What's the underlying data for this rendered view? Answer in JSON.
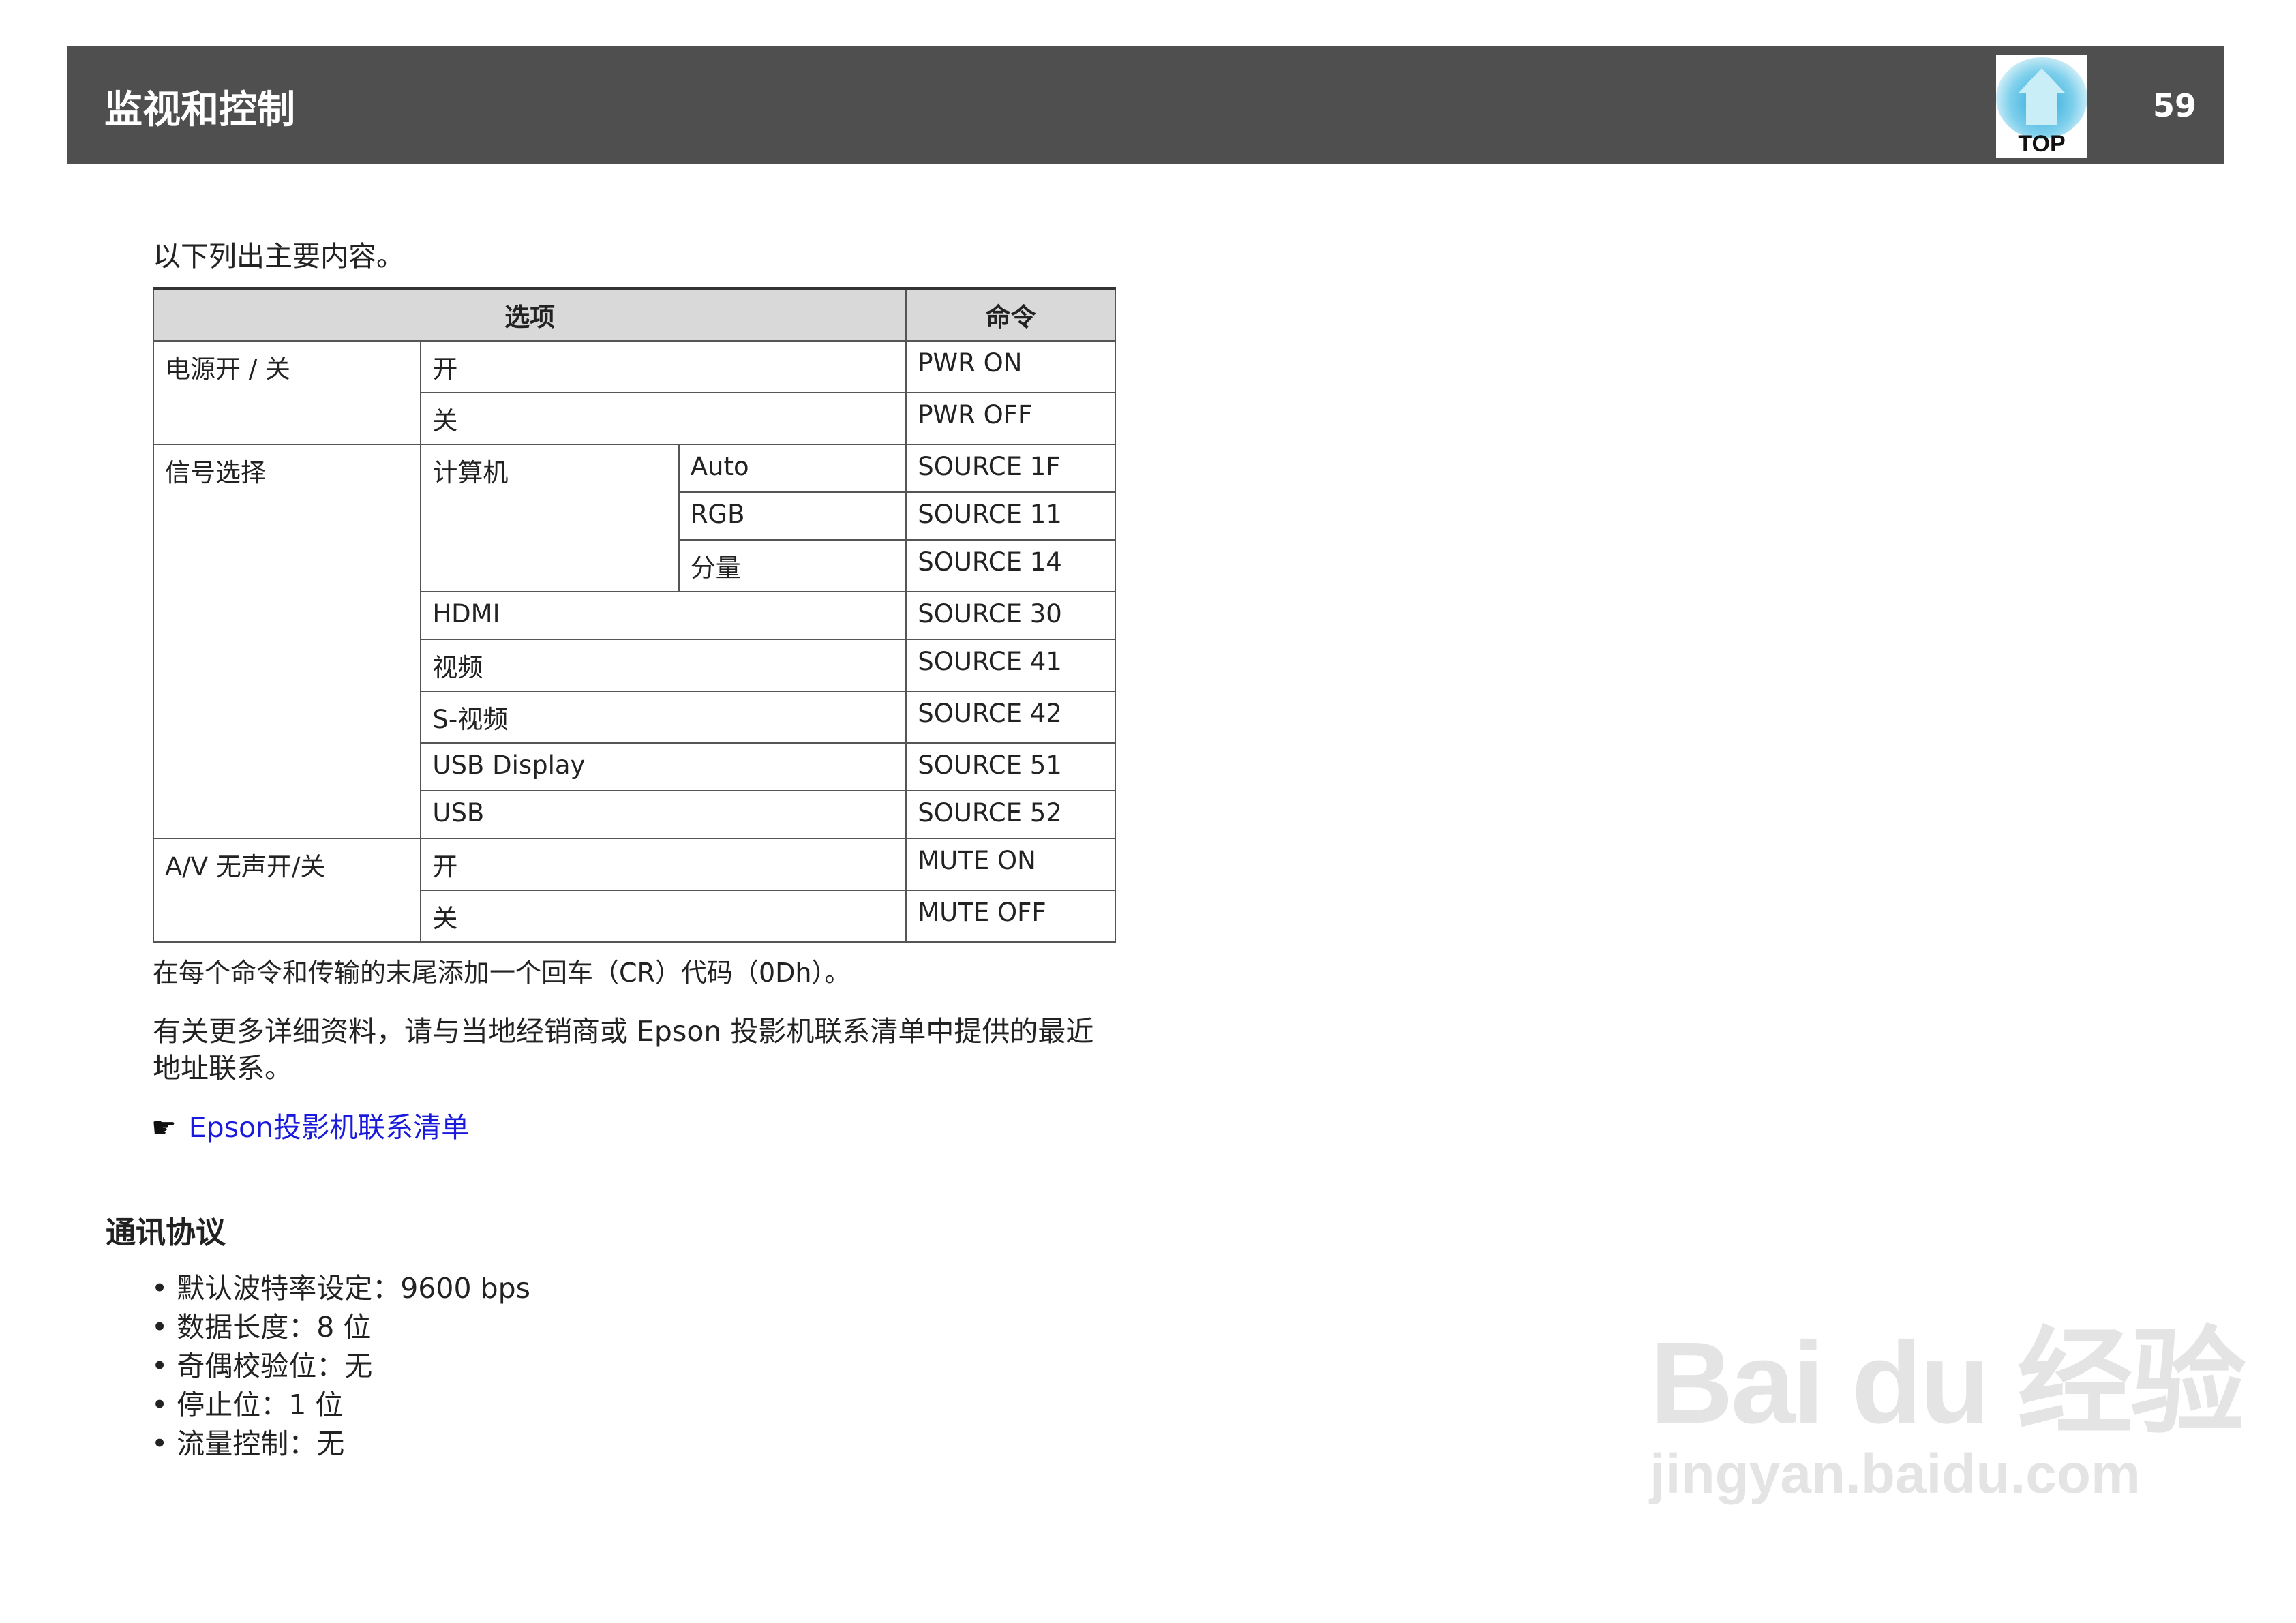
{
  "header": {
    "title": "监视和控制",
    "top_label": "TOP",
    "page_number": "59"
  },
  "intro": "以下列出主要内容。",
  "table": {
    "headers": [
      "选项",
      "命令"
    ],
    "rows": {
      "power": {
        "label": "电源开 / 关",
        "on": "开",
        "on_cmd": "PWR ON",
        "off": "关",
        "off_cmd": "PWR OFF"
      },
      "source": {
        "label": "信号选择",
        "computer": "计算机",
        "auto": "Auto",
        "auto_cmd": "SOURCE 1F",
        "rgb": "RGB",
        "rgb_cmd": "SOURCE 11",
        "component": "分量",
        "component_cmd": "SOURCE 14",
        "hdmi": "HDMI",
        "hdmi_cmd": "SOURCE 30",
        "video": "视频",
        "video_cmd": "SOURCE 41",
        "svideo": "S-视频",
        "svideo_cmd": "SOURCE 42",
        "usbdisplay": "USB Display",
        "usbdisplay_cmd": "SOURCE 51",
        "usb": "USB",
        "usb_cmd": "SOURCE 52"
      },
      "mute": {
        "label": "A/V 无声开/关",
        "on": "开",
        "on_cmd": "MUTE ON",
        "off": "关",
        "off_cmd": "MUTE OFF"
      }
    }
  },
  "note": "在每个命令和传输的末尾添加一个回车（CR）代码（0Dh）。",
  "more_info": "有关更多详细资料，请与当地经销商或 Epson 投影机联系清单中提供的最近地址联系。",
  "link": {
    "icon": "pointing-hand-icon",
    "hand": "☛",
    "text": "Epson投影机联系清单"
  },
  "section_title": "通讯协议",
  "protocol": [
    "默认波特率设定：9600 bps",
    "数据长度：8 位",
    "奇偶校验位：无",
    "停止位：1 位",
    "流量控制：无"
  ],
  "watermark": {
    "main": "Bai du 经验",
    "sub": "jingyan.baidu.com"
  }
}
